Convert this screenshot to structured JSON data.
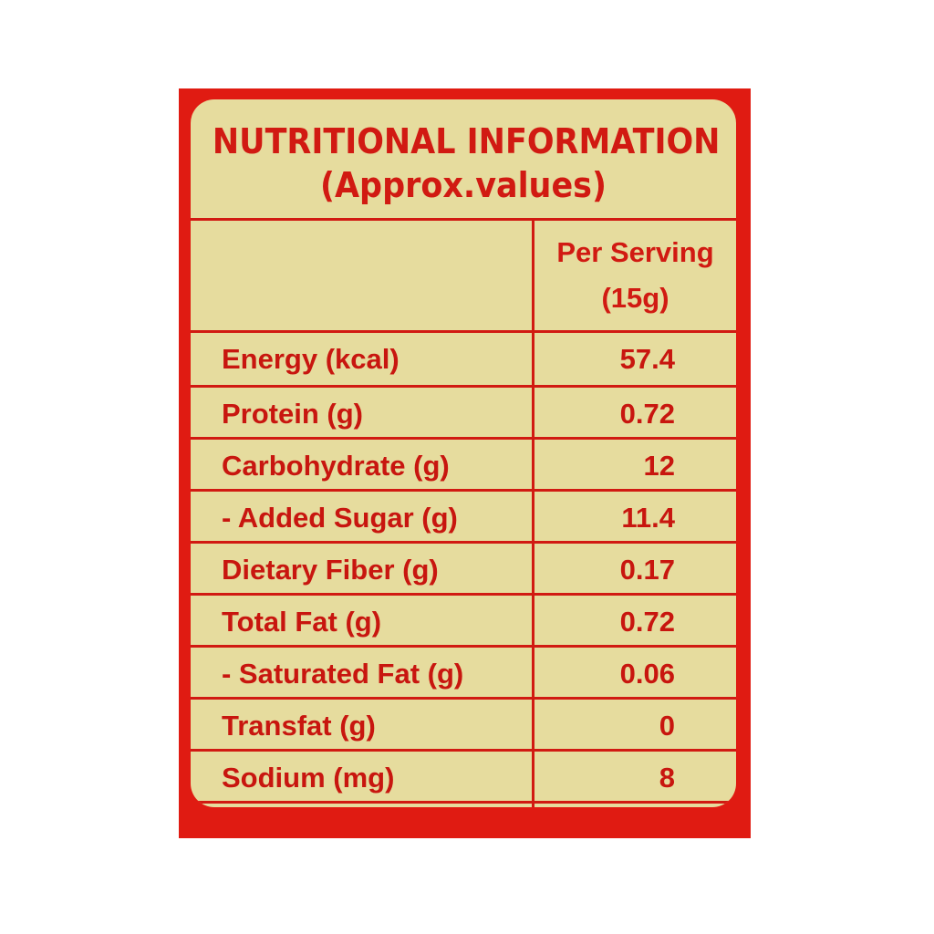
{
  "title": {
    "line1": "NUTRITIONAL INFORMATION",
    "line2": "(Approx.values)"
  },
  "header": {
    "line1": "Per Serving",
    "line2": "(15g)"
  },
  "rows": [
    {
      "label": "Energy (kcal)",
      "value": "57.4"
    },
    {
      "label": "Protein (g)",
      "value": "0.72"
    },
    {
      "label": "Carbohydrate (g)",
      "value": "12"
    },
    {
      "label": "- Added Sugar (g)",
      "value": "11.4"
    },
    {
      "label": "Dietary Fiber (g)",
      "value": "0.17"
    },
    {
      "label": "Total Fat (g)",
      "value": "0.72"
    },
    {
      "label": "- Saturated Fat (g)",
      "value": "0.06"
    },
    {
      "label": "Transfat (g)",
      "value": "0"
    },
    {
      "label": "Sodium (mg)",
      "value": "8"
    }
  ],
  "colors": {
    "red": "#e01b12",
    "cream": "#e6dc9e"
  }
}
